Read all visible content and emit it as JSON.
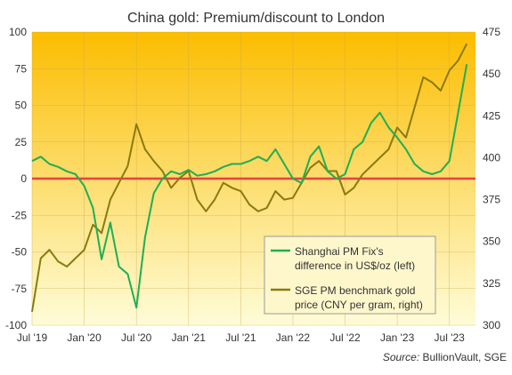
{
  "chart_data": {
    "type": "line",
    "title": "China gold: Premium/discount to London",
    "source_label": "Source:",
    "source_text": " BullionVault, SGE",
    "x_ticks": [
      "Jul '19",
      "Jan '20",
      "Jul '20",
      "Jan '21",
      "Jul '21",
      "Jan '22",
      "Jul '22",
      "Jan '23",
      "Jul '23"
    ],
    "x_range": [
      "2019-07",
      "2023-10"
    ],
    "y_left": {
      "ticks": [
        100,
        75,
        50,
        25,
        0,
        -25,
        -50,
        -75,
        -100
      ],
      "lim": [
        -100,
        100
      ]
    },
    "y_right": {
      "ticks": [
        475,
        450,
        425,
        400,
        375,
        350,
        325,
        300
      ],
      "lim": [
        300,
        475
      ]
    },
    "zero_line": 0,
    "grid": true,
    "legend_position": "bottom-right",
    "colors": {
      "premium_series": "#1fae55",
      "price_series": "#8a7a10",
      "zero_line": "#e84040",
      "bg_top": "#fbbd00",
      "bg_bottom": "#fefcd8"
    },
    "series": [
      {
        "name": "Shanghai PM Fix's difference in US$/oz (left)",
        "axis": "left",
        "x": [
          "2019-07",
          "2019-08",
          "2019-09",
          "2019-10",
          "2019-11",
          "2019-12",
          "2020-01",
          "2020-02",
          "2020-03",
          "2020-04",
          "2020-05",
          "2020-06",
          "2020-07",
          "2020-08",
          "2020-09",
          "2020-10",
          "2020-11",
          "2020-12",
          "2021-01",
          "2021-02",
          "2021-03",
          "2021-04",
          "2021-05",
          "2021-06",
          "2021-07",
          "2021-08",
          "2021-09",
          "2021-10",
          "2021-11",
          "2021-12",
          "2022-01",
          "2022-02",
          "2022-03",
          "2022-04",
          "2022-05",
          "2022-06",
          "2022-07",
          "2022-08",
          "2022-09",
          "2022-10",
          "2022-11",
          "2022-12",
          "2023-01",
          "2023-02",
          "2023-03",
          "2023-04",
          "2023-05",
          "2023-06",
          "2023-07",
          "2023-08",
          "2023-09"
        ],
        "values": [
          12,
          15,
          10,
          8,
          5,
          3,
          -5,
          -20,
          -55,
          -30,
          -60,
          -65,
          -88,
          -40,
          -10,
          0,
          5,
          3,
          6,
          2,
          3,
          5,
          8,
          10,
          10,
          12,
          15,
          12,
          20,
          10,
          0,
          -3,
          15,
          22,
          5,
          0,
          3,
          20,
          25,
          38,
          45,
          35,
          28,
          20,
          10,
          5,
          3,
          5,
          12,
          45,
          78
        ]
      },
      {
        "name": "SGE PM benchmark gold price (CNY per gram, right)",
        "axis": "right",
        "x": [
          "2019-07",
          "2019-08",
          "2019-09",
          "2019-10",
          "2019-11",
          "2019-12",
          "2020-01",
          "2020-02",
          "2020-03",
          "2020-04",
          "2020-05",
          "2020-06",
          "2020-07",
          "2020-08",
          "2020-09",
          "2020-10",
          "2020-11",
          "2020-12",
          "2021-01",
          "2021-02",
          "2021-03",
          "2021-04",
          "2021-05",
          "2021-06",
          "2021-07",
          "2021-08",
          "2021-09",
          "2021-10",
          "2021-11",
          "2021-12",
          "2022-01",
          "2022-02",
          "2022-03",
          "2022-04",
          "2022-05",
          "2022-06",
          "2022-07",
          "2022-08",
          "2022-09",
          "2022-10",
          "2022-11",
          "2022-12",
          "2023-01",
          "2023-02",
          "2023-03",
          "2023-04",
          "2023-05",
          "2023-06",
          "2023-07",
          "2023-08",
          "2023-09"
        ],
        "values": [
          308,
          340,
          345,
          338,
          335,
          340,
          345,
          360,
          355,
          375,
          385,
          395,
          420,
          405,
          398,
          392,
          382,
          388,
          392,
          375,
          368,
          375,
          385,
          382,
          380,
          372,
          368,
          370,
          380,
          375,
          376,
          385,
          394,
          398,
          392,
          392,
          378,
          382,
          390,
          395,
          400,
          405,
          418,
          412,
          430,
          448,
          445,
          440,
          452,
          458,
          468
        ]
      }
    ]
  }
}
